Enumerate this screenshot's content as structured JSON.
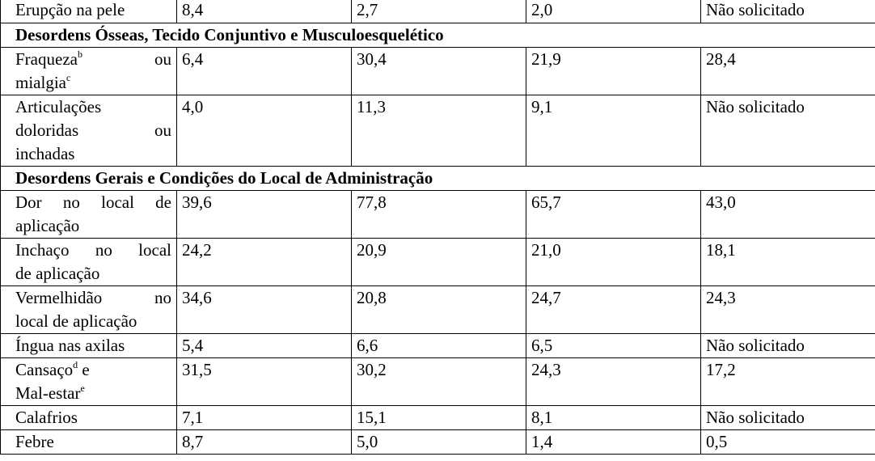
{
  "rows": {
    "r1": {
      "label": "Erupção na pele",
      "v1": "8,4",
      "v2": "2,7",
      "v3": "2,0",
      "v4": "Não solicitado"
    },
    "s1": "Desordens Ósseas, Tecido Conjuntivo e Musculoesquelético",
    "r2": {
      "l1a": "Fraqueza",
      "l1sup": "b",
      "l1b": "ou",
      "l2a": "mialgia",
      "l2sup": "c",
      "v1": "6,4",
      "v2": "30,4",
      "v3": "21,9",
      "v4": "28,4"
    },
    "r3": {
      "l1": "Articulações",
      "l2a": "doloridas",
      "l2b": "ou",
      "l3": "inchadas",
      "v1": "4,0",
      "v2": "11,3",
      "v3": "9,1",
      "v4": "Não solicitado"
    },
    "s2": "Desordens Gerais e Condições do Local de Administração",
    "r4": {
      "l1": "Dor no local de",
      "l2": "aplicação",
      "v1": "39,6",
      "v2": "77,8",
      "v3": "65,7",
      "v4": "43,0"
    },
    "r5": {
      "l1": "Inchaço no local",
      "l2": "de aplicação",
      "v1": "24,2",
      "v2": "20,9",
      "v3": "21,0",
      "v4": "18,1"
    },
    "r6": {
      "l1a": "Vermelhidão",
      "l1b": "no",
      "l2": "local de aplicação",
      "v1": "34,6",
      "v2": "20,8",
      "v3": "24,7",
      "v4": "24,3"
    },
    "r7": {
      "label": "Íngua nas axilas",
      "v1": "5,4",
      "v2": "6,6",
      "v3": "6,5",
      "v4": "Não solicitado"
    },
    "r8": {
      "l1a": "Cansaço",
      "l1sup": "d",
      "l1b": " e",
      "l2a": "Mal-estar",
      "l2sup": "e",
      "v1": "31,5",
      "v2": "30,2",
      "v3": "24,3",
      "v4": "17,2"
    },
    "r9": {
      "label": "Calafrios",
      "v1": "7,1",
      "v2": "15,1",
      "v3": "8,1",
      "v4": "Não solicitado"
    },
    "r10": {
      "label": "Febre",
      "v1": "8,7",
      "v2": "5,0",
      "v3": "1,4",
      "v4": "0,5"
    }
  }
}
